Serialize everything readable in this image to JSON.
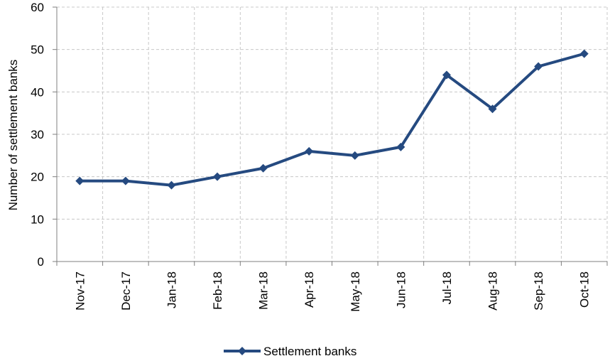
{
  "chart_data": {
    "type": "line",
    "categories": [
      "Nov-17",
      "Dec-17",
      "Jan-18",
      "Feb-18",
      "Mar-18",
      "Apr-18",
      "May-18",
      "Jun-18",
      "Jul-18",
      "Aug-18",
      "Sep-18",
      "Oct-18"
    ],
    "series": [
      {
        "name": "Settlement banks",
        "values": [
          19,
          19,
          18,
          20,
          22,
          26,
          25,
          27,
          44,
          36,
          46,
          49
        ],
        "color": "#254A80",
        "marker": "diamond"
      }
    ],
    "title": "",
    "xlabel": "",
    "ylabel": "Number of settlement banks",
    "ylim": [
      0,
      60
    ],
    "yticks": [
      0,
      10,
      20,
      30,
      40,
      50,
      60
    ],
    "grid": true,
    "legend_position": "bottom"
  }
}
